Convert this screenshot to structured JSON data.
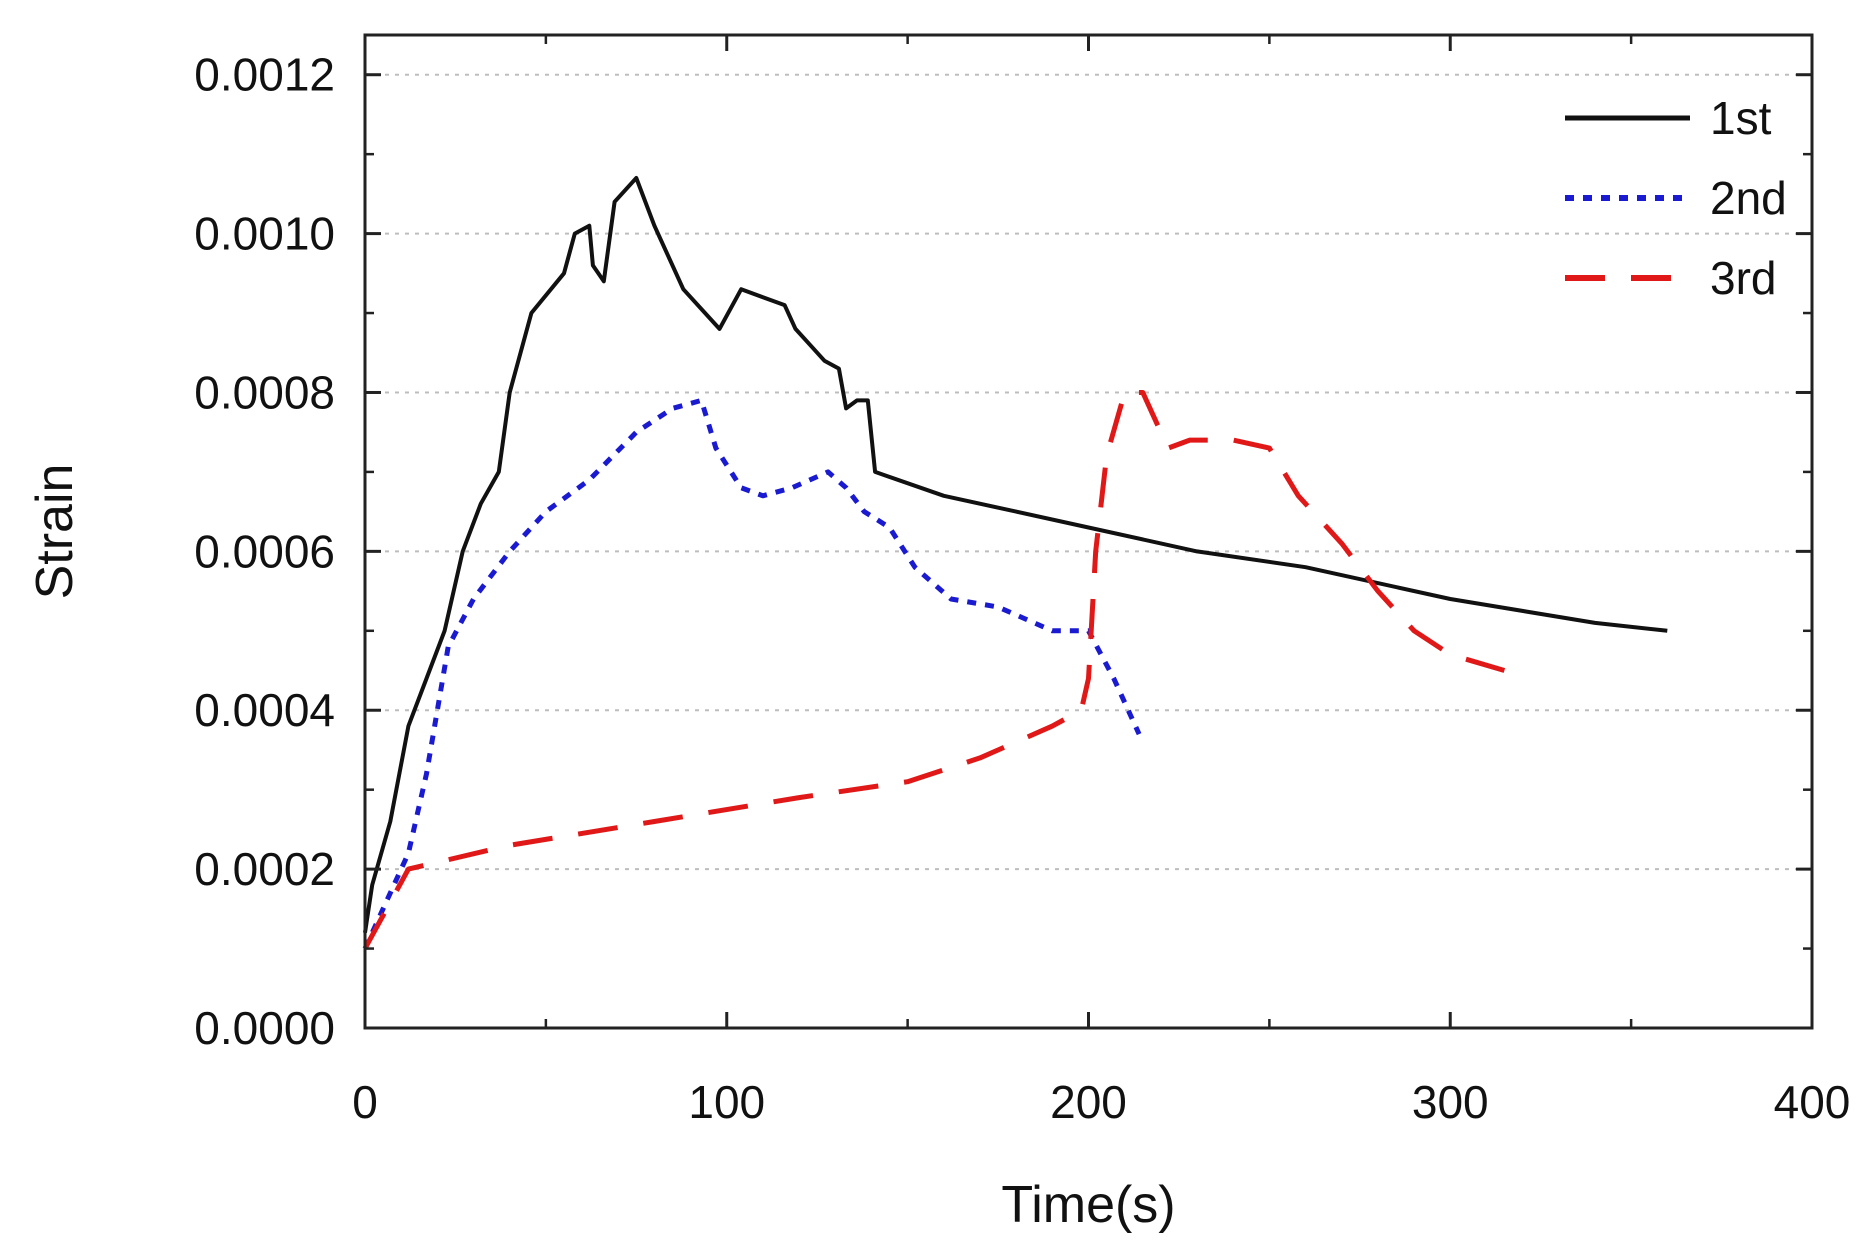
{
  "chart_data": {
    "type": "line",
    "title": "",
    "xlabel": "Time(s)",
    "ylabel": "Strain",
    "xlim": [
      0,
      400
    ],
    "ylim": [
      0,
      0.00125
    ],
    "grid": "horizontal-dotted",
    "legend_position": "top-right",
    "x_ticks": [
      {
        "value": 0,
        "label": "0"
      },
      {
        "value": 100,
        "label": "100"
      },
      {
        "value": 200,
        "label": "200"
      },
      {
        "value": 300,
        "label": "300"
      },
      {
        "value": 400,
        "label": "400"
      }
    ],
    "y_ticks": [
      {
        "value": 0.0,
        "label": "0.0000"
      },
      {
        "value": 0.0002,
        "label": "0.0002"
      },
      {
        "value": 0.0004,
        "label": "0.0004"
      },
      {
        "value": 0.0006,
        "label": "0.0006"
      },
      {
        "value": 0.0008,
        "label": "0.0008"
      },
      {
        "value": 0.001,
        "label": "0.0010"
      },
      {
        "value": 0.0012,
        "label": "0.0012"
      }
    ],
    "series": [
      {
        "name": "1st",
        "color": "#111111",
        "dash": "solid",
        "points": [
          [
            0,
            0.00012
          ],
          [
            2,
            0.00018
          ],
          [
            7,
            0.00026
          ],
          [
            12,
            0.00038
          ],
          [
            17,
            0.00044
          ],
          [
            22,
            0.0005
          ],
          [
            27,
            0.0006
          ],
          [
            32,
            0.00066
          ],
          [
            37,
            0.0007
          ],
          [
            40,
            0.0008
          ],
          [
            46,
            0.0009
          ],
          [
            55,
            0.00095
          ],
          [
            58,
            0.001
          ],
          [
            62,
            0.00101
          ],
          [
            63,
            0.00096
          ],
          [
            66,
            0.00094
          ],
          [
            69,
            0.00104
          ],
          [
            75,
            0.00107
          ],
          [
            80,
            0.00101
          ],
          [
            88,
            0.00093
          ],
          [
            98,
            0.00088
          ],
          [
            104,
            0.00093
          ],
          [
            110,
            0.00092
          ],
          [
            116,
            0.00091
          ],
          [
            119,
            0.00088
          ],
          [
            123,
            0.00086
          ],
          [
            127,
            0.00084
          ],
          [
            131,
            0.00083
          ],
          [
            133,
            0.00078
          ],
          [
            136,
            0.00079
          ],
          [
            139,
            0.00079
          ],
          [
            141,
            0.0007
          ],
          [
            160,
            0.00067
          ],
          [
            180,
            0.00065
          ],
          [
            200,
            0.00063
          ],
          [
            230,
            0.0006
          ],
          [
            260,
            0.00058
          ],
          [
            300,
            0.00054
          ],
          [
            340,
            0.00051
          ],
          [
            360,
            0.0005
          ]
        ]
      },
      {
        "name": "2nd",
        "color": "#1a1ad0",
        "dash": "dotted",
        "points": [
          [
            0,
            0.0001
          ],
          [
            5,
            0.00015
          ],
          [
            12,
            0.00022
          ],
          [
            17,
            0.00032
          ],
          [
            23,
            0.00048
          ],
          [
            30,
            0.00054
          ],
          [
            40,
            0.0006
          ],
          [
            50,
            0.00065
          ],
          [
            62,
            0.00069
          ],
          [
            75,
            0.00075
          ],
          [
            85,
            0.00078
          ],
          [
            93,
            0.00079
          ],
          [
            97,
            0.00073
          ],
          [
            104,
            0.00068
          ],
          [
            110,
            0.00067
          ],
          [
            118,
            0.00068
          ],
          [
            128,
            0.0007
          ],
          [
            133,
            0.00068
          ],
          [
            138,
            0.00065
          ],
          [
            145,
            0.00063
          ],
          [
            152,
            0.00058
          ],
          [
            162,
            0.00054
          ],
          [
            175,
            0.00053
          ],
          [
            190,
            0.0005
          ],
          [
            200,
            0.0005
          ],
          [
            207,
            0.00044
          ],
          [
            214,
            0.00037
          ]
        ]
      },
      {
        "name": "3rd",
        "color": "#e01818",
        "dash": "dashed",
        "points": [
          [
            0,
            0.0001
          ],
          [
            12,
            0.0002
          ],
          [
            40,
            0.00023
          ],
          [
            80,
            0.00026
          ],
          [
            120,
            0.00029
          ],
          [
            150,
            0.00031
          ],
          [
            170,
            0.00034
          ],
          [
            190,
            0.00038
          ],
          [
            198,
            0.0004
          ],
          [
            200,
            0.00044
          ],
          [
            202,
            0.0006
          ],
          [
            205,
            0.00072
          ],
          [
            210,
            0.0008
          ],
          [
            215,
            0.0008
          ],
          [
            222,
            0.00073
          ],
          [
            228,
            0.00074
          ],
          [
            240,
            0.00074
          ],
          [
            250,
            0.00073
          ],
          [
            258,
            0.00067
          ],
          [
            270,
            0.00061
          ],
          [
            280,
            0.00055
          ],
          [
            290,
            0.0005
          ],
          [
            300,
            0.00047
          ],
          [
            315,
            0.00045
          ]
        ]
      }
    ]
  }
}
